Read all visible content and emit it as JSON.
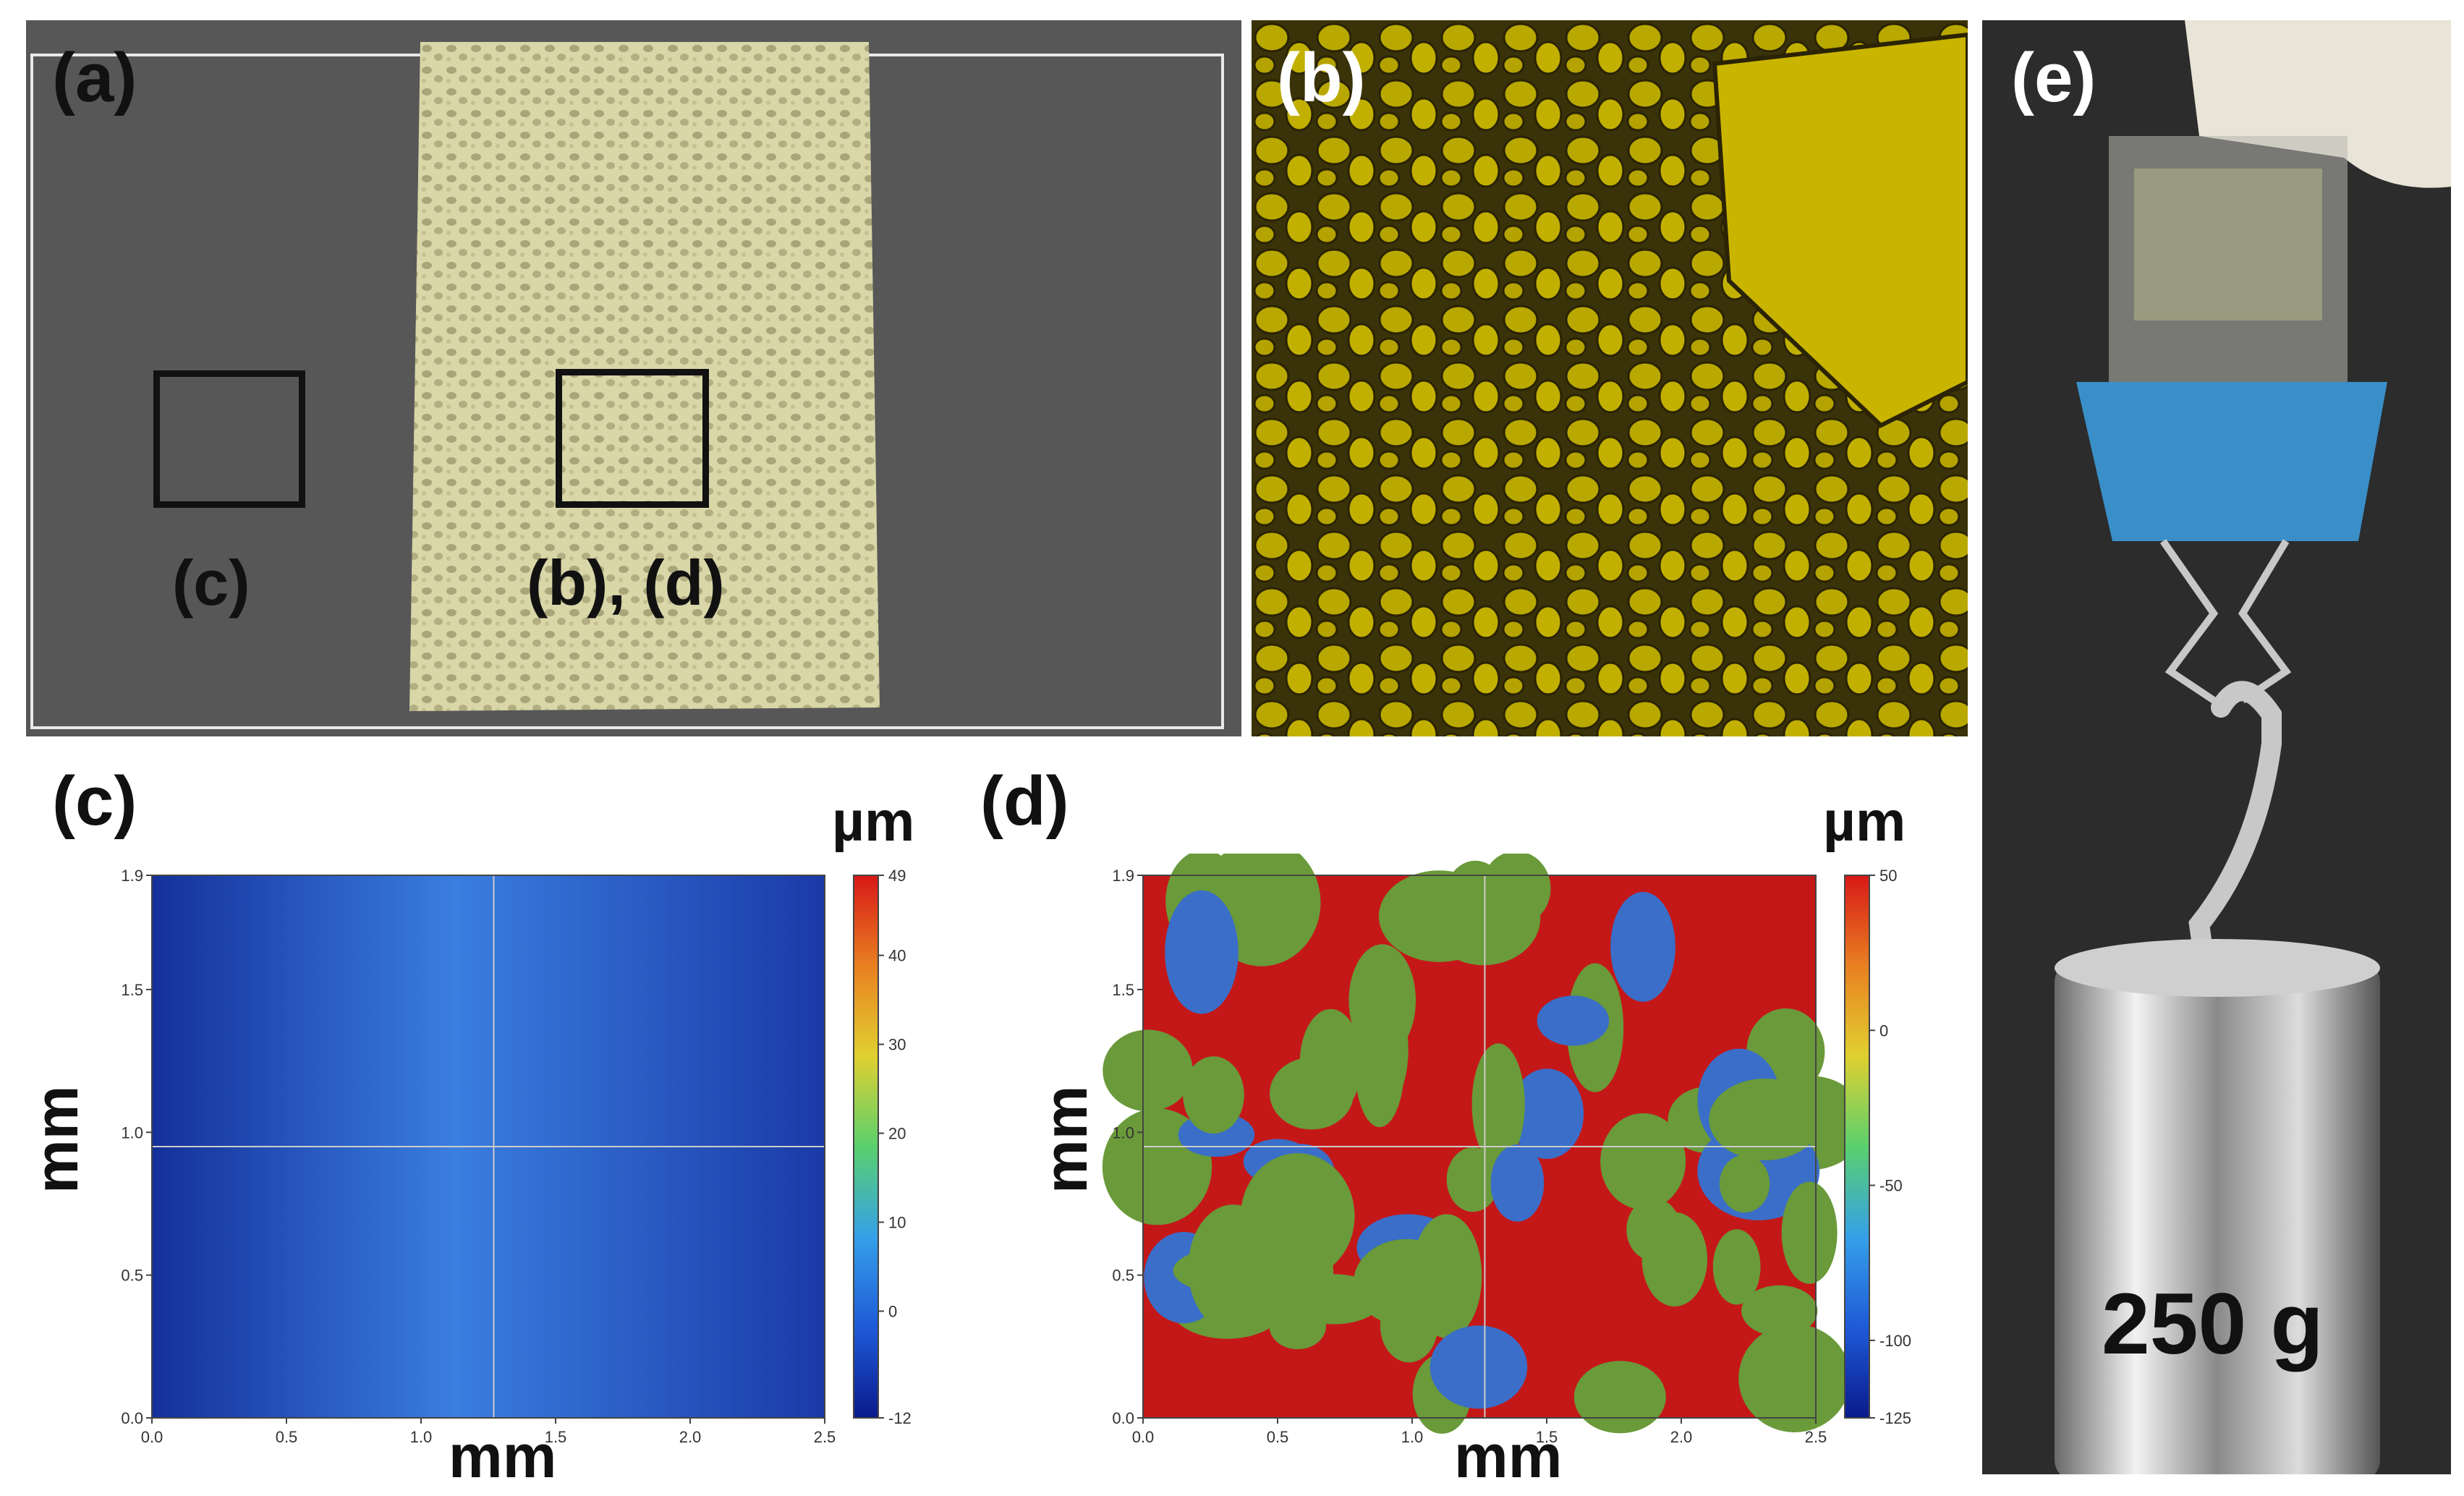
{
  "panel_a": {
    "label": "(a)",
    "box_c_label": "(c)",
    "box_bd_label": "(b), (d)"
  },
  "panel_b": {
    "label": "(b)"
  },
  "panel_e": {
    "label": "(e)",
    "weight_text": "250 g"
  },
  "chart_data": [
    {
      "panel": "(c)",
      "type": "heatmap",
      "xlabel": "mm",
      "ylabel": "mm",
      "unit": "µm",
      "xlim": [
        0.0,
        2.5
      ],
      "ylim": [
        0.0,
        1.9
      ],
      "x_ticks": [
        "0.0",
        "0.5",
        "1.0",
        "1.5",
        "2.0",
        "2.5"
      ],
      "y_ticks": [
        "0.0",
        "0.5",
        "1.0",
        "1.5",
        "1.9"
      ],
      "colorbar_range": [
        -12,
        49
      ],
      "colorbar_ticks": [
        "49",
        "40",
        "30",
        "20",
        "10",
        "0",
        "-12"
      ],
      "colors": [
        "#0a1a8c",
        "#1e5ad8",
        "#35a0e8",
        "#5ad06e",
        "#e0d030",
        "#e88020",
        "#d81818"
      ]
    },
    {
      "panel": "(d)",
      "type": "heatmap",
      "xlabel": "mm",
      "ylabel": "mm",
      "unit": "µm",
      "xlim": [
        0.0,
        2.5
      ],
      "ylim": [
        0.0,
        1.9
      ],
      "x_ticks": [
        "0.0",
        "0.5",
        "1.0",
        "1.5",
        "2.0",
        "2.5"
      ],
      "y_ticks": [
        "0.0",
        "0.5",
        "1.0",
        "1.5",
        "1.9"
      ],
      "colorbar_range": [
        -125,
        50
      ],
      "colorbar_ticks": [
        "50",
        "0",
        "-50",
        "-100",
        "-125"
      ],
      "colors": [
        "#0a1a8c",
        "#1e5ad8",
        "#35a0e8",
        "#5ad06e",
        "#e0d030",
        "#e88020",
        "#d81818"
      ]
    }
  ]
}
